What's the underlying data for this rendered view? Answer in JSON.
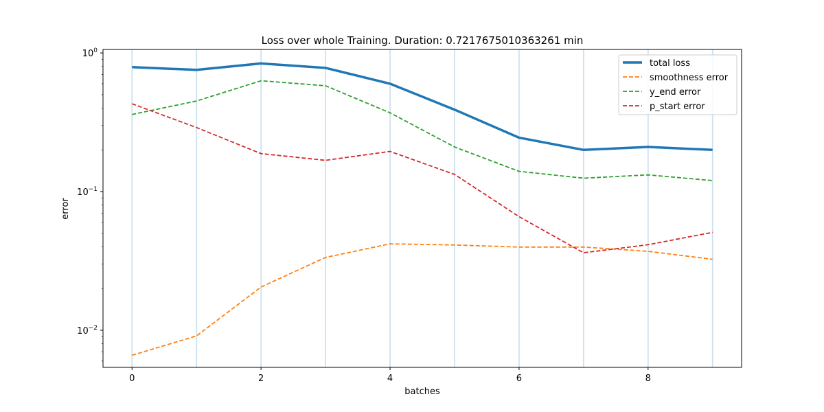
{
  "chart_data": {
    "type": "line",
    "title": "Loss over whole Training. Duration: 0.7217675010363261 min",
    "xlabel": "batches",
    "ylabel": "error",
    "yscale": "log",
    "xlim": [
      -0.45,
      9.45
    ],
    "ylim": [
      0.0054,
      1.06
    ],
    "xticks": [
      0,
      2,
      4,
      6,
      8
    ],
    "xtick_labels": [
      "0",
      "2",
      "4",
      "6",
      "8"
    ],
    "yticks": [
      {
        "value": 1,
        "base": "10",
        "exp": "0"
      },
      {
        "value": 0.1,
        "base": "10",
        "exp": "−1"
      },
      {
        "value": 0.01,
        "base": "10",
        "exp": "−2"
      }
    ],
    "vertical_lines": [
      0,
      1,
      2,
      3,
      4,
      5,
      6,
      7,
      8,
      9
    ],
    "legend_position": "upper right",
    "x": [
      0,
      1,
      2,
      3,
      4,
      5,
      6,
      7,
      8,
      9
    ],
    "series": [
      {
        "name": "total loss",
        "color": "#1f77b4",
        "style": "solid",
        "width": 3.5,
        "values": [
          0.79,
          0.755,
          0.84,
          0.78,
          0.6,
          0.39,
          0.245,
          0.2,
          0.21,
          0.2
        ]
      },
      {
        "name": "smoothness error",
        "color": "#ff7f0e",
        "style": "dashed",
        "width": 1.8,
        "values": [
          0.0066,
          0.0091,
          0.0205,
          0.0335,
          0.042,
          0.0412,
          0.0398,
          0.0398,
          0.0371,
          0.0325
        ]
      },
      {
        "name": "y_end error",
        "color": "#2ca02c",
        "style": "dashed",
        "width": 1.8,
        "values": [
          0.36,
          0.45,
          0.63,
          0.58,
          0.37,
          0.21,
          0.14,
          0.125,
          0.132,
          0.12
        ]
      },
      {
        "name": "p_start error",
        "color": "#d62728",
        "style": "dashed",
        "width": 1.8,
        "values": [
          0.43,
          0.29,
          0.188,
          0.168,
          0.195,
          0.133,
          0.066,
          0.0362,
          0.0414,
          0.0508
        ]
      }
    ]
  }
}
